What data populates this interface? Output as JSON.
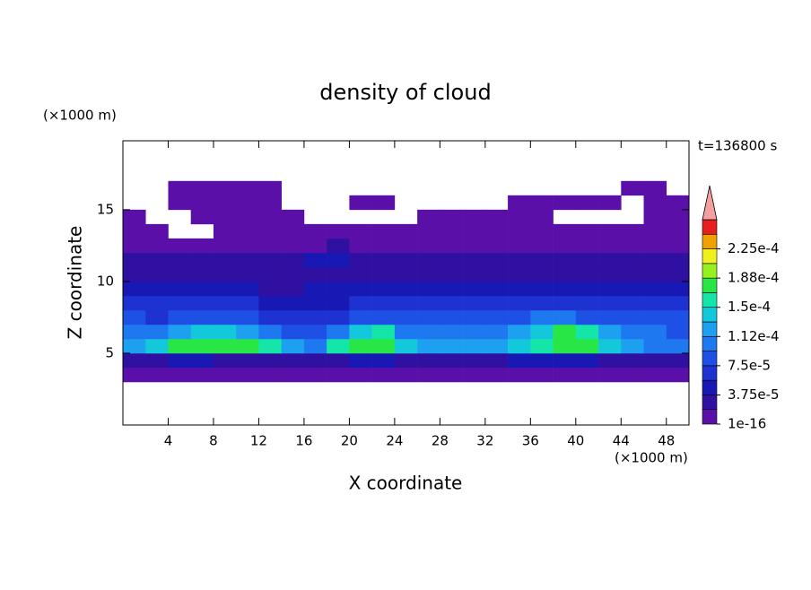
{
  "chart_data": {
    "type": "contour",
    "title": "density of cloud",
    "xlabel": "X coordinate",
    "ylabel": "Z coordinate",
    "xunit": "(×1000 m)",
    "yunit": "(×1000 m)",
    "annotation": "t=136800 s",
    "xlim": [
      0,
      50
    ],
    "ylim": [
      0,
      19.8
    ],
    "xticks": [
      4,
      8,
      12,
      16,
      20,
      24,
      28,
      32,
      36,
      40,
      44,
      48
    ],
    "yticks": [
      5,
      10,
      15
    ],
    "x": [
      1,
      3,
      5,
      7,
      9,
      11,
      13,
      15,
      17,
      19,
      21,
      23,
      25,
      27,
      29,
      31,
      33,
      35,
      37,
      39,
      41,
      43,
      45,
      47,
      49
    ],
    "z": [
      3.5,
      4.5,
      5.5,
      6.5,
      7.5,
      8.5,
      9.5,
      10.5,
      11.5,
      12.5,
      13.5,
      14.5,
      15.5,
      16.5
    ],
    "values": [
      [
        5e-06,
        5e-06,
        5e-06,
        5e-06,
        5e-06,
        5e-06,
        5e-06,
        5e-06,
        5e-06,
        5e-06,
        5e-06,
        5e-06,
        5e-06,
        5e-06,
        5e-06,
        5e-06,
        5e-06,
        5e-06,
        5e-06,
        5e-06,
        5e-06,
        5e-06,
        5e-06,
        5e-06,
        5e-06
      ],
      [
        3e-05,
        3.5e-05,
        4e-05,
        4e-05,
        3.5e-05,
        3e-05,
        3e-05,
        2.5e-05,
        2.5e-05,
        3e-05,
        4e-05,
        4e-05,
        3.5e-05,
        3e-05,
        3e-05,
        3.5e-05,
        3.5e-05,
        4e-05,
        4e-05,
        4e-05,
        4e-05,
        3.5e-05,
        3e-05,
        3e-05,
        3e-05
      ],
      [
        0.00012,
        0.00014,
        0.00017,
        0.00018,
        0.00018,
        0.00017,
        0.00015,
        0.00013,
        0.0001,
        0.00015,
        0.00018,
        0.00018,
        0.00014,
        0.00012,
        0.00012,
        0.00013,
        0.00013,
        0.00014,
        0.00016,
        0.00018,
        0.00018,
        0.00014,
        0.00012,
        0.00011,
        0.00011
      ],
      [
        0.0001,
        0.0001,
        0.00012,
        0.00014,
        0.00014,
        0.00013,
        0.00011,
        9e-05,
        8e-05,
        0.00011,
        0.00014,
        0.00015,
        0.00011,
        0.0001,
        0.0001,
        0.00011,
        0.00011,
        0.00012,
        0.00014,
        0.00017,
        0.00016,
        0.00012,
        0.0001,
        0.0001,
        9e-05
      ],
      [
        8e-05,
        7e-05,
        8e-05,
        8e-05,
        9e-05,
        8e-05,
        7e-05,
        6e-05,
        6e-05,
        7e-05,
        8e-05,
        8e-05,
        8e-05,
        9e-05,
        9e-05,
        9e-05,
        9e-05,
        9e-05,
        0.0001,
        0.0001,
        9e-05,
        9e-05,
        9e-05,
        9e-05,
        8e-05
      ],
      [
        6e-05,
        6e-05,
        6e-05,
        6e-05,
        6e-05,
        6e-05,
        5e-05,
        5e-05,
        5e-05,
        5e-05,
        6e-05,
        6e-05,
        6e-05,
        6e-05,
        6e-05,
        6e-05,
        6e-05,
        6e-05,
        7e-05,
        7e-05,
        6e-05,
        6e-05,
        6e-05,
        6e-05,
        6e-05
      ],
      [
        4e-05,
        4e-05,
        4e-05,
        4e-05,
        4e-05,
        4e-05,
        3.5e-05,
        3.5e-05,
        4e-05,
        4e-05,
        4e-05,
        4e-05,
        4e-05,
        4e-05,
        4e-05,
        4e-05,
        4e-05,
        4e-05,
        4e-05,
        4e-05,
        4e-05,
        4e-05,
        4e-05,
        4e-05,
        4e-05
      ],
      [
        2.5e-05,
        2.5e-05,
        2.5e-05,
        2.5e-05,
        2.5e-05,
        2.5e-05,
        2.5e-05,
        2.5e-05,
        3e-05,
        3e-05,
        2.5e-05,
        2.5e-05,
        2.5e-05,
        2.5e-05,
        2.5e-05,
        2.5e-05,
        2.5e-05,
        2.5e-05,
        2.5e-05,
        2.5e-05,
        2.5e-05,
        2.5e-05,
        2.5e-05,
        2.5e-05,
        2.5e-05
      ],
      [
        2e-05,
        2e-05,
        2e-05,
        2e-05,
        2e-05,
        2e-05,
        2e-05,
        2e-05,
        4e-05,
        4e-05,
        2e-05,
        2e-05,
        2e-05,
        2e-05,
        2e-05,
        2e-05,
        2e-05,
        2e-05,
        2e-05,
        2e-05,
        2e-05,
        2e-05,
        2e-05,
        2e-05,
        2e-05
      ],
      [
        1e-05,
        1e-05,
        1e-05,
        1e-05,
        1e-05,
        1e-05,
        1e-05,
        1e-05,
        1e-05,
        3e-05,
        1e-05,
        1e-05,
        1e-05,
        1e-05,
        1e-05,
        1e-05,
        1e-05,
        1e-05,
        1e-05,
        1e-05,
        1e-05,
        1e-05,
        1e-05,
        1e-05,
        1e-05
      ],
      [
        5e-06,
        5e-06,
        null,
        null,
        5e-06,
        5e-06,
        5e-06,
        5e-06,
        5e-06,
        5e-06,
        5e-06,
        5e-06,
        5e-06,
        5e-06,
        5e-06,
        5e-06,
        5e-06,
        5e-06,
        5e-06,
        5e-06,
        5e-06,
        5e-06,
        5e-06,
        5e-06,
        5e-06
      ],
      [
        5e-06,
        null,
        null,
        5e-06,
        5e-06,
        5e-06,
        5e-06,
        5e-06,
        null,
        null,
        null,
        null,
        null,
        5e-06,
        5e-06,
        5e-06,
        5e-06,
        5e-06,
        5e-06,
        null,
        null,
        null,
        null,
        5e-06,
        5e-06
      ],
      [
        null,
        null,
        5e-06,
        5e-06,
        5e-06,
        5e-06,
        5e-06,
        null,
        null,
        null,
        5e-06,
        5e-06,
        null,
        null,
        null,
        null,
        null,
        5e-06,
        5e-06,
        5e-06,
        5e-06,
        5e-06,
        null,
        5e-06,
        5e-06
      ],
      [
        null,
        null,
        5e-06,
        5e-06,
        5e-06,
        5e-06,
        5e-06,
        null,
        null,
        null,
        null,
        null,
        null,
        null,
        null,
        null,
        null,
        null,
        null,
        null,
        null,
        null,
        5e-06,
        5e-06,
        null
      ]
    ],
    "levels": [
      1e-16,
      1.875e-05,
      3.75e-05,
      5.625e-05,
      7.5e-05,
      9.375e-05,
      0.0001125,
      0.00013125,
      0.00015,
      0.00016875,
      0.0001875,
      0.00020625,
      0.000225,
      0.00024375,
      0.0002625
    ],
    "colors": [
      "#5a10a8",
      "#3010a0",
      "#1818b4",
      "#1e32d2",
      "#1e50e6",
      "#1e78f0",
      "#1ea0f0",
      "#14c8dc",
      "#14e6aa",
      "#28e646",
      "#96f01e",
      "#f0f01e",
      "#f0a000",
      "#e61e1e"
    ],
    "over_color": "#f4a0a0",
    "cbar_ticks": [
      1e-16,
      {
        "value": 3.75e-05,
        "label": "3.75e-5"
      },
      {
        "value": 7.5e-05,
        "label": "7.5e-5"
      },
      {
        "value": 0.0001125,
        "label": "1.12e-4"
      },
      {
        "value": 0.00015,
        "label": "1.5e-4"
      },
      {
        "value": 0.0001875,
        "label": "1.88e-4"
      },
      {
        "value": 0.000225,
        "label": "2.25e-4"
      }
    ]
  }
}
